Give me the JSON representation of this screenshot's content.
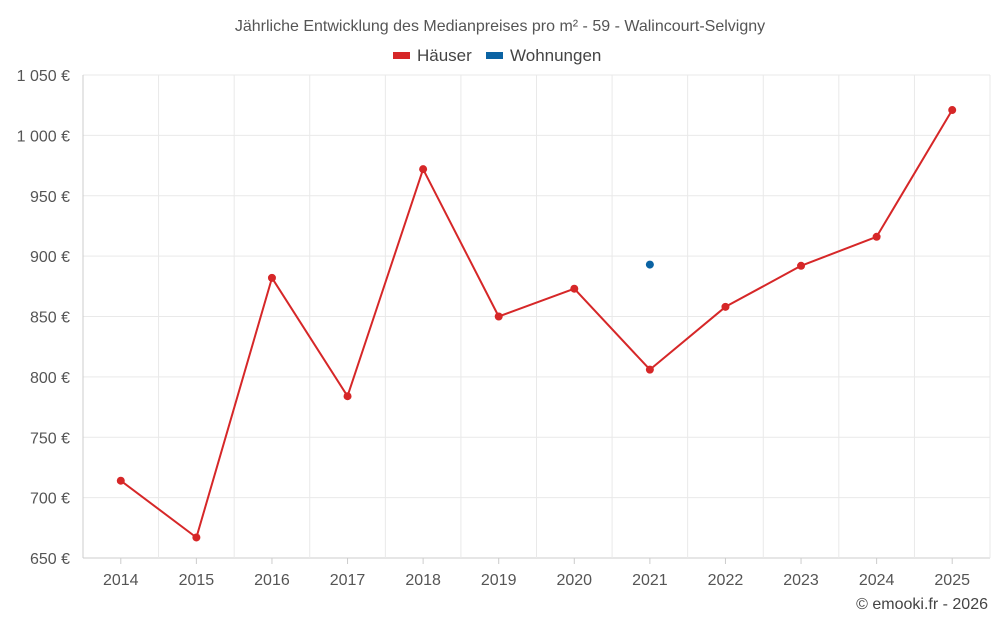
{
  "chart_data": {
    "type": "line",
    "title": "Jährliche Entwicklung des Medianpreises pro m² - 59 - Walincourt-Selvigny",
    "categories": [
      "2014",
      "2015",
      "2016",
      "2017",
      "2018",
      "2019",
      "2020",
      "2021",
      "2022",
      "2023",
      "2024",
      "2025"
    ],
    "series": [
      {
        "name": "Häuser",
        "color": "#d62728",
        "values": [
          714,
          667,
          882,
          784,
          972,
          850,
          873,
          806,
          858,
          892,
          916,
          1021
        ]
      },
      {
        "name": "Wohnungen",
        "color": "#0b63a3",
        "values": [
          null,
          null,
          null,
          null,
          null,
          null,
          null,
          893,
          null,
          null,
          null,
          null
        ]
      }
    ],
    "ylim": [
      650,
      1050
    ],
    "yticks": [
      650,
      700,
      750,
      800,
      850,
      900,
      950,
      1000,
      1050
    ],
    "ytick_labels": [
      "650 €",
      "700 €",
      "750 €",
      "800 €",
      "850 €",
      "900 €",
      "950 €",
      "1 000 €",
      "1 050 €"
    ],
    "grid": true,
    "legend_position": "top-center"
  },
  "credit": "© emooki.fr - 2026"
}
